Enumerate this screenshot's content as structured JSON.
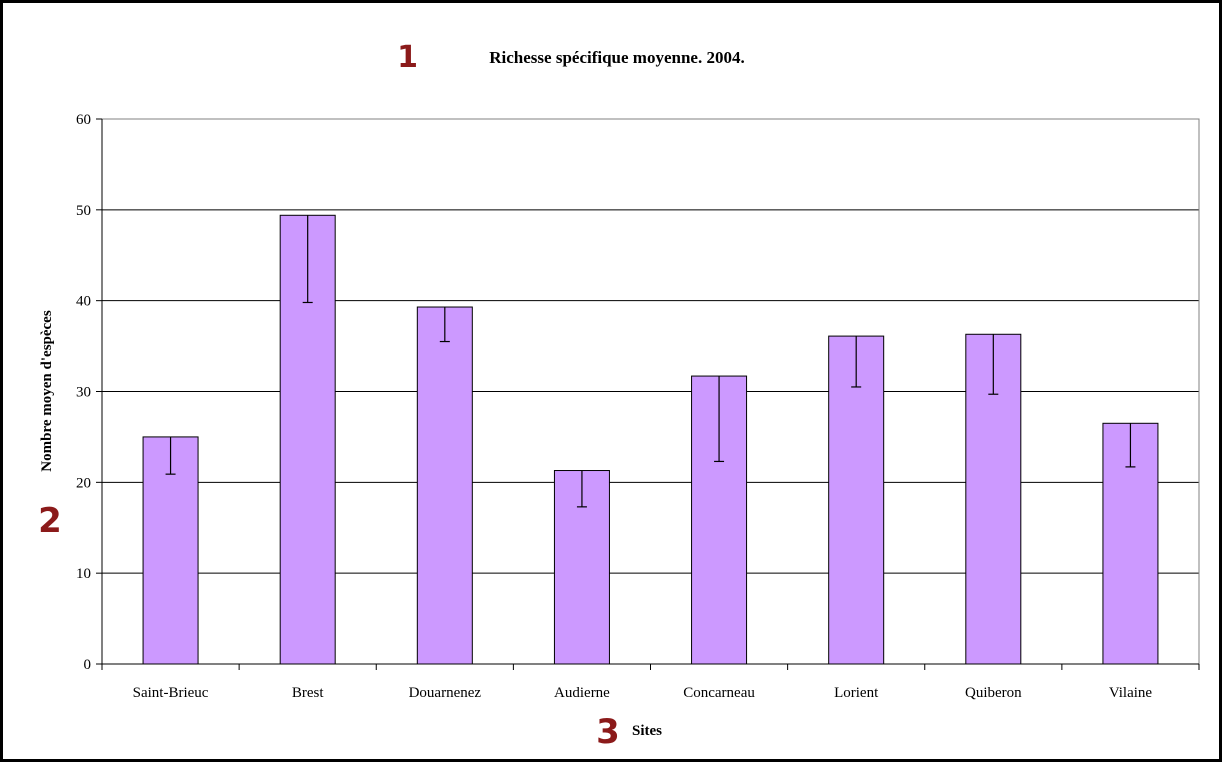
{
  "chart_data": {
    "type": "bar",
    "title": "Richesse spécifique moyenne. 2004.",
    "xlabel": "Sites",
    "ylabel": "Nombre moyen d'espèces",
    "categories": [
      "Saint-Brieuc",
      "Brest",
      "Douarnenez",
      "Audierne",
      "Concarneau",
      "Lorient",
      "Quiberon",
      "Vilaine"
    ],
    "values": [
      25.0,
      49.4,
      39.3,
      21.3,
      31.7,
      36.1,
      36.3,
      26.5
    ],
    "error_lower": [
      20.9,
      39.8,
      35.5,
      17.3,
      22.3,
      30.5,
      29.7,
      21.7
    ],
    "ylim": [
      0,
      60
    ],
    "yticks": [
      "0",
      "10",
      "20",
      "30",
      "40",
      "50",
      "60"
    ],
    "grid": true,
    "bar_color": "#cc99ff",
    "bar_stroke": "#000000"
  },
  "annotations": {
    "title_marker": "1",
    "ylabel_marker": "2",
    "xlabel_marker": "3",
    "marker_color": "#8b1a1a"
  }
}
